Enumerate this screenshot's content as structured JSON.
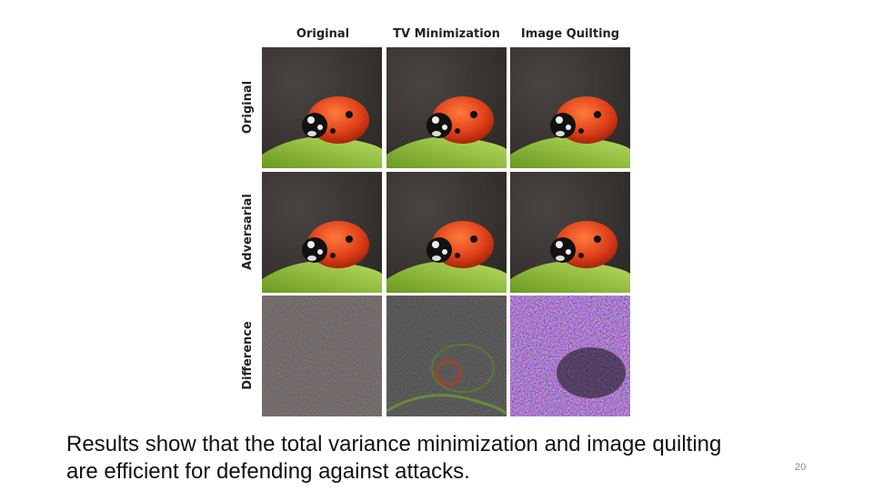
{
  "slide": {
    "column_headers": [
      "Original",
      "TV Minimization",
      "Image Quilting"
    ],
    "row_labels": [
      "Original",
      "Adversarial",
      "Difference"
    ],
    "caption_lines": [
      "Results show that the total variance minimization and image quilting",
      "are efficient for defending against attacks."
    ],
    "page_number": "20"
  }
}
